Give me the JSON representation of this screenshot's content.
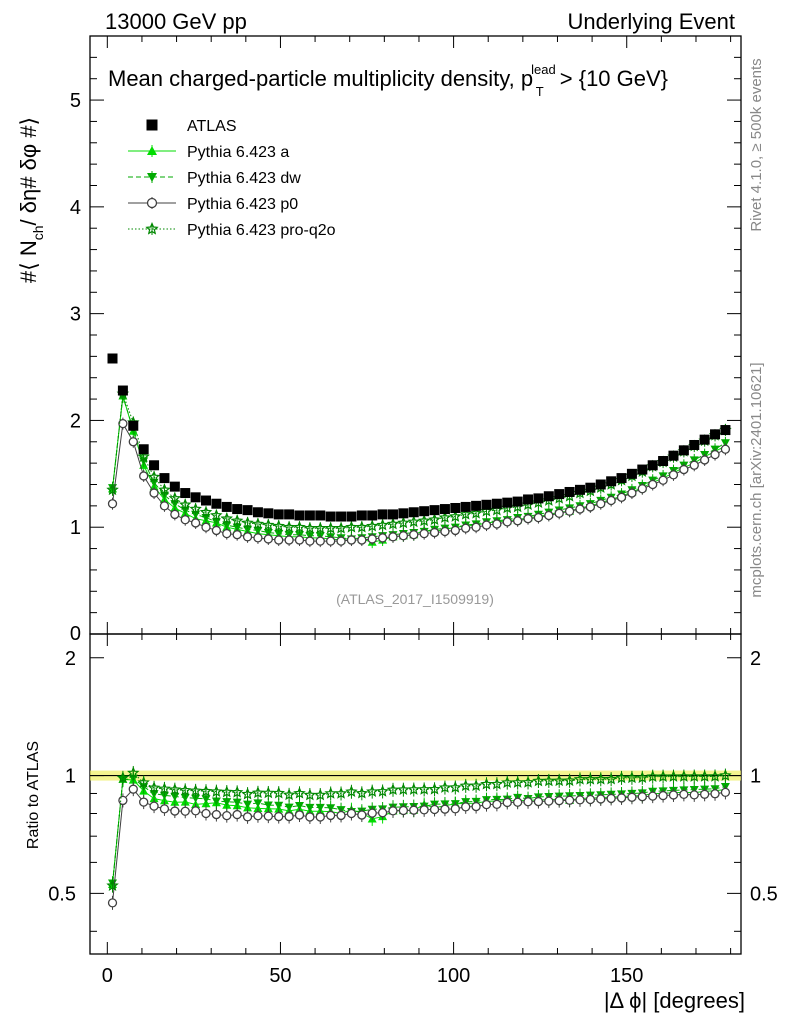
{
  "header": {
    "left": "13000 GeV pp",
    "right": "Underlying Event"
  },
  "plot": {
    "title_main": "Mean charged-particle multiplicity density, p",
    "title_sup": "lead",
    "title_sub": "T",
    "title_tail": " > {10 GeV}",
    "analysis_id": "(ATLAS_2017_I1509919)",
    "ylabel": "#⟨ N",
    "ylabel_sub": "ch",
    "ylabel_tail": "/ δη# δφ #⟩",
    "ratio_ylabel": "Ratio to ATLAS",
    "xlabel": "|Δ ϕ| [degrees]",
    "side_rivet": "Rivet 4.1.0, ≥ 500k events",
    "side_mcplots": "mcplots.cern.ch [arXiv:2401.10621]"
  },
  "legend": [
    {
      "label": "ATLAS",
      "color": "#000000",
      "marker": "square"
    },
    {
      "label": "Pythia 6.423 a",
      "color": "#00dd00",
      "marker": "triangle-up"
    },
    {
      "label": "Pythia 6.423 dw",
      "color": "#00aa00",
      "marker": "triangle-down"
    },
    {
      "label": "Pythia 6.423 p0",
      "color": "#404040",
      "marker": "circle"
    },
    {
      "label": "Pythia 6.423 pro-q2o",
      "color": "#008800",
      "marker": "star"
    }
  ],
  "chart_data": {
    "type": "scatter",
    "title": "Mean charged-particle multiplicity density, p_T^lead > {10 GeV}",
    "xlabel": "|Δ ϕ| [degrees]",
    "ylabel": "#⟨ N_ch / δη# δφ #⟩",
    "xlim": [
      -5,
      183
    ],
    "ylim": [
      0,
      5.6
    ],
    "ratio_ylim": [
      0.35,
      2.3
    ],
    "x_ticks": [
      0,
      50,
      100,
      150
    ],
    "y_ticks": [
      1,
      2,
      3,
      4,
      5
    ],
    "y_tick_zero_label": "0",
    "ratio_ticks": [
      0.5,
      1,
      2
    ],
    "x": [
      1.5,
      4.5,
      7.5,
      10.5,
      13.5,
      16.5,
      19.5,
      22.5,
      25.5,
      28.5,
      31.5,
      34.5,
      37.5,
      40.5,
      43.5,
      46.5,
      49.5,
      52.5,
      55.5,
      58.5,
      61.5,
      64.5,
      67.5,
      70.5,
      73.5,
      76.5,
      79.5,
      82.5,
      85.5,
      88.5,
      91.5,
      94.5,
      97.5,
      100.5,
      103.5,
      106.5,
      109.5,
      112.5,
      115.5,
      118.5,
      121.5,
      124.5,
      127.5,
      130.5,
      133.5,
      136.5,
      139.5,
      142.5,
      145.5,
      148.5,
      151.5,
      154.5,
      157.5,
      160.5,
      163.5,
      166.5,
      169.5,
      172.5,
      175.5,
      178.5
    ],
    "series": [
      {
        "name": "ATLAS",
        "values": [
          2.58,
          2.28,
          1.95,
          1.73,
          1.58,
          1.46,
          1.38,
          1.32,
          1.28,
          1.25,
          1.22,
          1.19,
          1.17,
          1.16,
          1.14,
          1.13,
          1.12,
          1.12,
          1.11,
          1.11,
          1.11,
          1.1,
          1.1,
          1.1,
          1.11,
          1.11,
          1.12,
          1.12,
          1.13,
          1.14,
          1.15,
          1.16,
          1.17,
          1.18,
          1.19,
          1.2,
          1.21,
          1.22,
          1.23,
          1.24,
          1.26,
          1.27,
          1.29,
          1.31,
          1.33,
          1.35,
          1.37,
          1.4,
          1.43,
          1.46,
          1.5,
          1.54,
          1.58,
          1.62,
          1.67,
          1.72,
          1.77,
          1.82,
          1.87,
          1.91
        ]
      },
      {
        "name": "Pythia 6.423 a",
        "values": [
          1.36,
          2.23,
          1.9,
          1.58,
          1.38,
          1.26,
          1.18,
          1.13,
          1.08,
          1.06,
          1.04,
          1.0,
          0.98,
          0.96,
          0.94,
          0.93,
          0.92,
          0.91,
          0.91,
          0.9,
          0.9,
          0.89,
          0.88,
          0.9,
          0.89,
          0.86,
          0.88,
          0.91,
          0.92,
          0.93,
          0.97,
          0.96,
          0.98,
          1.0,
          1.01,
          1.02,
          1.04,
          1.05,
          1.06,
          1.07,
          1.09,
          1.1,
          1.12,
          1.14,
          1.15,
          1.18,
          1.2,
          1.23,
          1.26,
          1.29,
          1.33,
          1.37,
          1.42,
          1.46,
          1.51,
          1.56,
          1.6,
          1.66,
          1.71,
          1.76
        ]
      },
      {
        "name": "Pythia 6.423 dw",
        "values": [
          1.37,
          2.22,
          1.92,
          1.62,
          1.42,
          1.3,
          1.22,
          1.16,
          1.12,
          1.09,
          1.05,
          1.02,
          1.0,
          0.98,
          0.97,
          0.95,
          0.94,
          0.93,
          0.93,
          0.92,
          0.92,
          0.91,
          0.9,
          0.89,
          0.9,
          0.91,
          0.92,
          0.93,
          0.94,
          0.95,
          0.96,
          0.98,
          0.99,
          1.0,
          1.02,
          1.03,
          1.05,
          1.06,
          1.07,
          1.09,
          1.1,
          1.12,
          1.14,
          1.16,
          1.18,
          1.2,
          1.22,
          1.25,
          1.28,
          1.31,
          1.35,
          1.39,
          1.44,
          1.48,
          1.53,
          1.58,
          1.63,
          1.68,
          1.73,
          1.79
        ]
      },
      {
        "name": "Pythia 6.423 p0",
        "values": [
          1.22,
          1.97,
          1.8,
          1.48,
          1.32,
          1.2,
          1.12,
          1.07,
          1.04,
          1.0,
          0.97,
          0.94,
          0.93,
          0.91,
          0.9,
          0.89,
          0.88,
          0.88,
          0.88,
          0.87,
          0.87,
          0.87,
          0.87,
          0.88,
          0.88,
          0.89,
          0.9,
          0.91,
          0.92,
          0.93,
          0.94,
          0.95,
          0.96,
          0.97,
          0.99,
          1.0,
          1.02,
          1.03,
          1.05,
          1.06,
          1.08,
          1.09,
          1.11,
          1.13,
          1.15,
          1.17,
          1.19,
          1.22,
          1.25,
          1.28,
          1.32,
          1.36,
          1.4,
          1.44,
          1.49,
          1.54,
          1.58,
          1.63,
          1.68,
          1.73
        ]
      },
      {
        "name": "Pythia 6.423 pro-q2o",
        "values": [
          1.35,
          2.25,
          1.98,
          1.66,
          1.47,
          1.35,
          1.27,
          1.21,
          1.17,
          1.14,
          1.11,
          1.08,
          1.06,
          1.04,
          1.03,
          1.02,
          1.01,
          1.0,
          1.0,
          0.99,
          0.99,
          0.99,
          0.99,
          1.0,
          1.0,
          1.01,
          1.02,
          1.03,
          1.04,
          1.05,
          1.06,
          1.07,
          1.09,
          1.1,
          1.12,
          1.13,
          1.15,
          1.16,
          1.18,
          1.19,
          1.21,
          1.23,
          1.25,
          1.27,
          1.29,
          1.32,
          1.34,
          1.37,
          1.4,
          1.44,
          1.48,
          1.52,
          1.57,
          1.61,
          1.66,
          1.71,
          1.76,
          1.81,
          1.86,
          1.91
        ]
      }
    ]
  }
}
